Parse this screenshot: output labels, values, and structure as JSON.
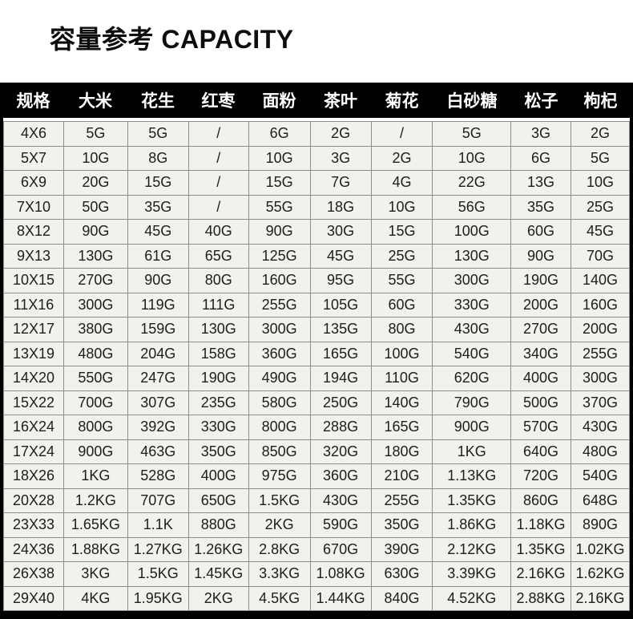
{
  "title": "容量参考 CAPACITY",
  "colors": {
    "header_bg": "#000000",
    "header_text": "#ffffff",
    "cell_bg": "#f2f1ec",
    "grid_border": "#8e8e8e",
    "cell_text": "#1d1d1d",
    "frame": "#000000"
  },
  "chart_data": {
    "type": "table",
    "title": "容量参考 CAPACITY",
    "columns": [
      "规格",
      "大米",
      "花生",
      "红枣",
      "面粉",
      "茶叶",
      "菊花",
      "白砂糖",
      "松子",
      "枸杞"
    ],
    "rows": [
      [
        "4X6",
        "5G",
        "5G",
        "/",
        "6G",
        "2G",
        "/",
        "5G",
        "3G",
        "2G"
      ],
      [
        "5X7",
        "10G",
        "8G",
        "/",
        "10G",
        "3G",
        "2G",
        "10G",
        "6G",
        "5G"
      ],
      [
        "6X9",
        "20G",
        "15G",
        "/",
        "15G",
        "7G",
        "4G",
        "22G",
        "13G",
        "10G"
      ],
      [
        "7X10",
        "50G",
        "35G",
        "/",
        "55G",
        "18G",
        "10G",
        "56G",
        "35G",
        "25G"
      ],
      [
        "8X12",
        "90G",
        "45G",
        "40G",
        "90G",
        "30G",
        "15G",
        "100G",
        "60G",
        "45G"
      ],
      [
        "9X13",
        "130G",
        "61G",
        "65G",
        "125G",
        "45G",
        "25G",
        "130G",
        "90G",
        "70G"
      ],
      [
        "10X15",
        "270G",
        "90G",
        "80G",
        "160G",
        "95G",
        "55G",
        "300G",
        "190G",
        "140G"
      ],
      [
        "11X16",
        "300G",
        "119G",
        "111G",
        "255G",
        "105G",
        "60G",
        "330G",
        "200G",
        "160G"
      ],
      [
        "12X17",
        "380G",
        "159G",
        "130G",
        "300G",
        "135G",
        "80G",
        "430G",
        "270G",
        "200G"
      ],
      [
        "13X19",
        "480G",
        "204G",
        "158G",
        "360G",
        "165G",
        "100G",
        "540G",
        "340G",
        "255G"
      ],
      [
        "14X20",
        "550G",
        "247G",
        "190G",
        "490G",
        "194G",
        "110G",
        "620G",
        "400G",
        "300G"
      ],
      [
        "15X22",
        "700G",
        "307G",
        "235G",
        "580G",
        "250G",
        "140G",
        "790G",
        "500G",
        "370G"
      ],
      [
        "16X24",
        "800G",
        "392G",
        "330G",
        "800G",
        "288G",
        "165G",
        "900G",
        "570G",
        "430G"
      ],
      [
        "17X24",
        "900G",
        "463G",
        "350G",
        "850G",
        "320G",
        "180G",
        "1KG",
        "640G",
        "480G"
      ],
      [
        "18X26",
        "1KG",
        "528G",
        "400G",
        "975G",
        "360G",
        "210G",
        "1.13KG",
        "720G",
        "540G"
      ],
      [
        "20X28",
        "1.2KG",
        "707G",
        "650G",
        "1.5KG",
        "430G",
        "255G",
        "1.35KG",
        "860G",
        "648G"
      ],
      [
        "23X33",
        "1.65KG",
        "1.1K",
        "880G",
        "2KG",
        "590G",
        "350G",
        "1.86KG",
        "1.18KG",
        "890G"
      ],
      [
        "24X36",
        "1.88KG",
        "1.27KG",
        "1.26KG",
        "2.8KG",
        "670G",
        "390G",
        "2.12KG",
        "1.35KG",
        "1.02KG"
      ],
      [
        "26X38",
        "3KG",
        "1.5KG",
        "1.45KG",
        "3.3KG",
        "1.08KG",
        "630G",
        "3.39KG",
        "2.16KG",
        "1.62KG"
      ],
      [
        "29X40",
        "4KG",
        "1.95KG",
        "2KG",
        "4.5KG",
        "1.44KG",
        "840G",
        "4.52KG",
        "2.88KG",
        "2.16KG"
      ]
    ]
  }
}
